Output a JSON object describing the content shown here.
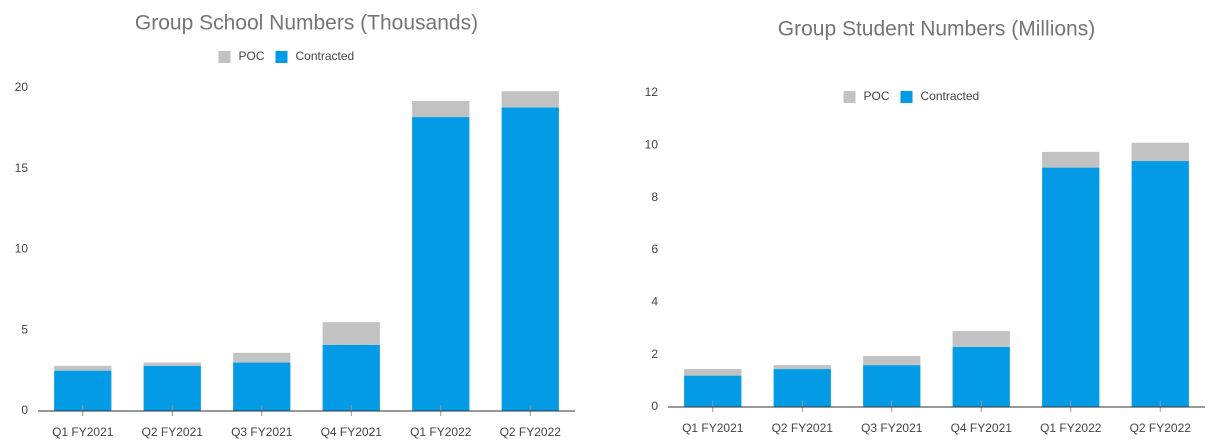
{
  "chart_data": [
    {
      "type": "bar",
      "stacked": true,
      "title": "Group School Numbers (Thousands)",
      "categories": [
        "Q1 FY2021",
        "Q2 FY2021",
        "Q3 FY2021",
        "Q4 FY2021",
        "Q1 FY2022",
        "Q2 FY2022"
      ],
      "series": [
        {
          "name": "POC",
          "color": "#c2c2c2",
          "values": [
            0.3,
            0.2,
            0.6,
            1.4,
            1.0,
            1.0
          ]
        },
        {
          "name": "Contracted",
          "color": "#039be5",
          "values": [
            2.5,
            2.8,
            3.0,
            4.1,
            18.2,
            18.8
          ]
        }
      ],
      "ylim": [
        0,
        20
      ],
      "yticks": [
        0,
        5,
        10,
        15,
        20
      ],
      "grid": false,
      "legend": "top"
    },
    {
      "type": "bar",
      "stacked": true,
      "title": "Group Student Numbers (Millions)",
      "categories": [
        "Q1 FY2021",
        "Q2 FY2021",
        "Q3 FY2021",
        "Q4 FY2021",
        "Q1 FY2022",
        "Q2 FY2022"
      ],
      "series": [
        {
          "name": "POC",
          "color": "#c2c2c2",
          "values": [
            0.25,
            0.15,
            0.35,
            0.6,
            0.6,
            0.7
          ]
        },
        {
          "name": "Contracted",
          "color": "#039be5",
          "values": [
            1.2,
            1.45,
            1.6,
            2.3,
            9.15,
            9.4
          ]
        }
      ],
      "ylim": [
        0,
        12
      ],
      "yticks": [
        0,
        2,
        4,
        6,
        8,
        10,
        12
      ],
      "grid": false,
      "legend": "top"
    }
  ]
}
